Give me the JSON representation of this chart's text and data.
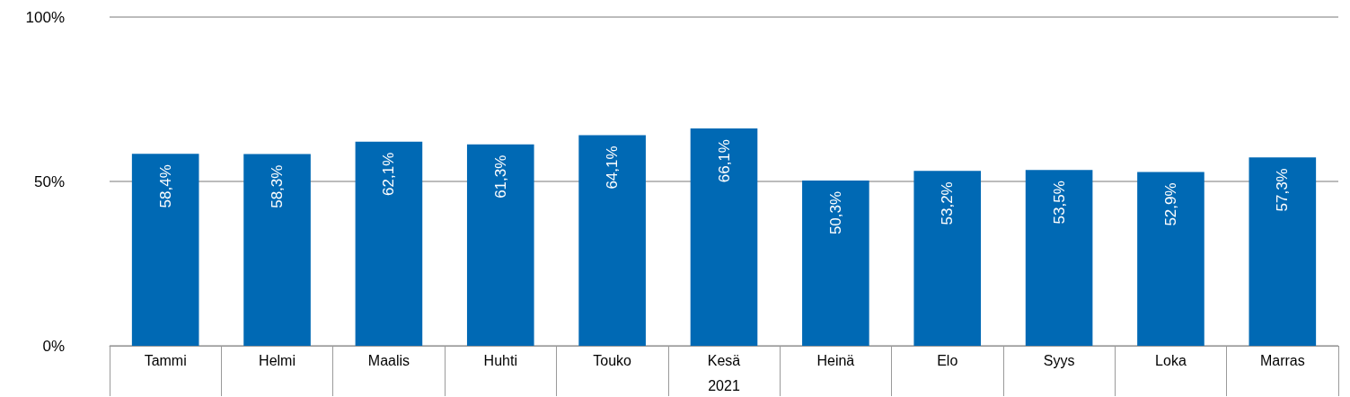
{
  "chart_data": {
    "type": "bar",
    "categories": [
      "Tammi",
      "Helmi",
      "Maalis",
      "Huhti",
      "Touko",
      "Kesä",
      "Heinä",
      "Elo",
      "Syys",
      "Loka",
      "Marras"
    ],
    "xlabel": "2021",
    "values": [
      58.4,
      58.3,
      62.1,
      61.3,
      64.1,
      66.1,
      50.3,
      53.2,
      53.5,
      52.9,
      57.3
    ],
    "value_labels": [
      "58,4%",
      "58,3%",
      "62,1%",
      "61,3%",
      "64,1%",
      "66,1%",
      "50,3%",
      "53,2%",
      "53,5%",
      "52,9%",
      "57,3%"
    ],
    "color": "#0069b4",
    "ylim": [
      0,
      100
    ],
    "yticks": [
      {
        "value": 0,
        "label": "0%"
      },
      {
        "value": 50,
        "label": "50%"
      },
      {
        "value": 100,
        "label": "100%"
      }
    ],
    "grid": "y"
  }
}
